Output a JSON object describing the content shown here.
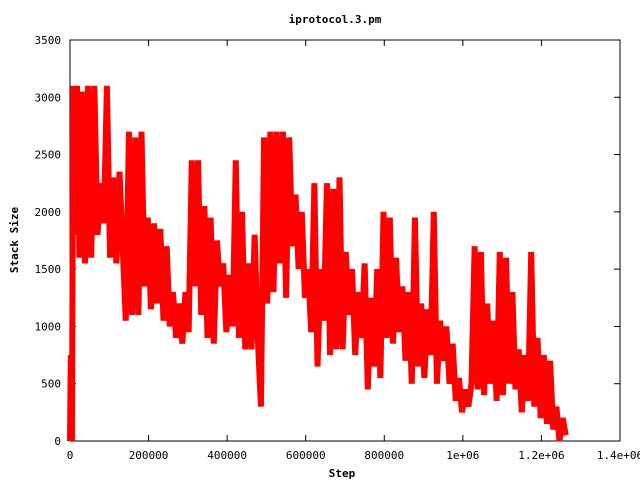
{
  "chart_data": {
    "type": "line",
    "title": "iprotocol.3.pm",
    "xlabel": "Step",
    "ylabel": "Stack Size",
    "xlim": [
      0,
      1400000
    ],
    "ylim": [
      0,
      3500
    ],
    "xticks": [
      {
        "value": 0,
        "label": "0"
      },
      {
        "value": 200000,
        "label": "200000"
      },
      {
        "value": 400000,
        "label": "400000"
      },
      {
        "value": 600000,
        "label": "600000"
      },
      {
        "value": 800000,
        "label": "800000"
      },
      {
        "value": 1000000,
        "label": "1e+06"
      },
      {
        "value": 1200000,
        "label": "1.2e+06"
      },
      {
        "value": 1400000,
        "label": "1.4e+06"
      }
    ],
    "yticks": [
      {
        "value": 0,
        "label": "0"
      },
      {
        "value": 500,
        "label": "500"
      },
      {
        "value": 1000,
        "label": "1000"
      },
      {
        "value": 1500,
        "label": "1500"
      },
      {
        "value": 2000,
        "label": "2000"
      },
      {
        "value": 2500,
        "label": "2500"
      },
      {
        "value": 3000,
        "label": "3000"
      },
      {
        "value": 3500,
        "label": "3500"
      }
    ],
    "grid": false,
    "legend": "none",
    "series_color": "#ff0000",
    "series": [
      {
        "name": "",
        "points": [
          [
            0,
            0
          ],
          [
            2000,
            750
          ],
          [
            5000,
            0
          ],
          [
            8000,
            3100
          ],
          [
            12000,
            1800
          ],
          [
            18000,
            3100
          ],
          [
            24000,
            1600
          ],
          [
            30000,
            3050
          ],
          [
            38000,
            1550
          ],
          [
            46000,
            3100
          ],
          [
            54000,
            1600
          ],
          [
            62000,
            3100
          ],
          [
            70000,
            1800
          ],
          [
            78000,
            2250
          ],
          [
            86000,
            1900
          ],
          [
            94000,
            3100
          ],
          [
            102000,
            1600
          ],
          [
            110000,
            2300
          ],
          [
            118000,
            1550
          ],
          [
            126000,
            2350
          ],
          [
            134000,
            1700
          ],
          [
            142000,
            1050
          ],
          [
            150000,
            2700
          ],
          [
            158000,
            1100
          ],
          [
            166000,
            2650
          ],
          [
            174000,
            1100
          ],
          [
            182000,
            2700
          ],
          [
            190000,
            1350
          ],
          [
            198000,
            1950
          ],
          [
            206000,
            1150
          ],
          [
            214000,
            1900
          ],
          [
            222000,
            1200
          ],
          [
            230000,
            1850
          ],
          [
            238000,
            1050
          ],
          [
            246000,
            1700
          ],
          [
            254000,
            1000
          ],
          [
            262000,
            1300
          ],
          [
            270000,
            900
          ],
          [
            278000,
            1200
          ],
          [
            286000,
            850
          ],
          [
            294000,
            1300
          ],
          [
            302000,
            950
          ],
          [
            310000,
            2450
          ],
          [
            318000,
            1350
          ],
          [
            326000,
            2450
          ],
          [
            334000,
            1100
          ],
          [
            342000,
            2050
          ],
          [
            350000,
            900
          ],
          [
            358000,
            1950
          ],
          [
            366000,
            850
          ],
          [
            374000,
            1750
          ],
          [
            382000,
            1350
          ],
          [
            390000,
            1550
          ],
          [
            398000,
            950
          ],
          [
            406000,
            1450
          ],
          [
            414000,
            1000
          ],
          [
            422000,
            2450
          ],
          [
            430000,
            900
          ],
          [
            438000,
            2000
          ],
          [
            446000,
            800
          ],
          [
            454000,
            1550
          ],
          [
            462000,
            800
          ],
          [
            470000,
            1800
          ],
          [
            478000,
            900
          ],
          [
            486000,
            300
          ],
          [
            494000,
            2650
          ],
          [
            502000,
            1200
          ],
          [
            510000,
            2700
          ],
          [
            518000,
            1300
          ],
          [
            526000,
            2700
          ],
          [
            534000,
            1550
          ],
          [
            542000,
            2700
          ],
          [
            550000,
            1250
          ],
          [
            558000,
            2650
          ],
          [
            566000,
            1700
          ],
          [
            574000,
            2150
          ],
          [
            582000,
            1500
          ],
          [
            590000,
            2000
          ],
          [
            598000,
            1250
          ],
          [
            606000,
            1500
          ],
          [
            614000,
            950
          ],
          [
            622000,
            2250
          ],
          [
            630000,
            650
          ],
          [
            638000,
            1500
          ],
          [
            646000,
            1050
          ],
          [
            654000,
            2250
          ],
          [
            662000,
            750
          ],
          [
            670000,
            2200
          ],
          [
            678000,
            800
          ],
          [
            686000,
            2300
          ],
          [
            694000,
            800
          ],
          [
            702000,
            1650
          ],
          [
            710000,
            1100
          ],
          [
            718000,
            1500
          ],
          [
            726000,
            750
          ],
          [
            734000,
            1300
          ],
          [
            742000,
            900
          ],
          [
            750000,
            1550
          ],
          [
            758000,
            450
          ],
          [
            766000,
            1250
          ],
          [
            774000,
            650
          ],
          [
            782000,
            1500
          ],
          [
            790000,
            550
          ],
          [
            798000,
            2000
          ],
          [
            806000,
            900
          ],
          [
            814000,
            1950
          ],
          [
            822000,
            850
          ],
          [
            830000,
            1600
          ],
          [
            838000,
            950
          ],
          [
            846000,
            1350
          ],
          [
            854000,
            700
          ],
          [
            862000,
            1300
          ],
          [
            870000,
            500
          ],
          [
            878000,
            1950
          ],
          [
            886000,
            650
          ],
          [
            894000,
            1200
          ],
          [
            902000,
            550
          ],
          [
            910000,
            1150
          ],
          [
            918000,
            750
          ],
          [
            926000,
            2000
          ],
          [
            934000,
            500
          ],
          [
            942000,
            1050
          ],
          [
            950000,
            700
          ],
          [
            958000,
            1000
          ],
          [
            966000,
            500
          ],
          [
            974000,
            850
          ],
          [
            982000,
            350
          ],
          [
            990000,
            550
          ],
          [
            998000,
            250
          ],
          [
            1006000,
            450
          ],
          [
            1014000,
            300
          ],
          [
            1022000,
            500
          ],
          [
            1030000,
            1700
          ],
          [
            1038000,
            450
          ],
          [
            1046000,
            1650
          ],
          [
            1054000,
            400
          ],
          [
            1062000,
            1200
          ],
          [
            1070000,
            500
          ],
          [
            1078000,
            1050
          ],
          [
            1086000,
            350
          ],
          [
            1094000,
            1650
          ],
          [
            1102000,
            400
          ],
          [
            1110000,
            1600
          ],
          [
            1118000,
            500
          ],
          [
            1126000,
            1300
          ],
          [
            1134000,
            450
          ],
          [
            1142000,
            800
          ],
          [
            1150000,
            250
          ],
          [
            1158000,
            750
          ],
          [
            1166000,
            350
          ],
          [
            1174000,
            1650
          ],
          [
            1182000,
            300
          ],
          [
            1190000,
            900
          ],
          [
            1198000,
            200
          ],
          [
            1206000,
            750
          ],
          [
            1214000,
            150
          ],
          [
            1222000,
            700
          ],
          [
            1230000,
            100
          ],
          [
            1238000,
            300
          ],
          [
            1246000,
            0
          ],
          [
            1254000,
            200
          ],
          [
            1262000,
            50
          ]
        ]
      }
    ]
  }
}
